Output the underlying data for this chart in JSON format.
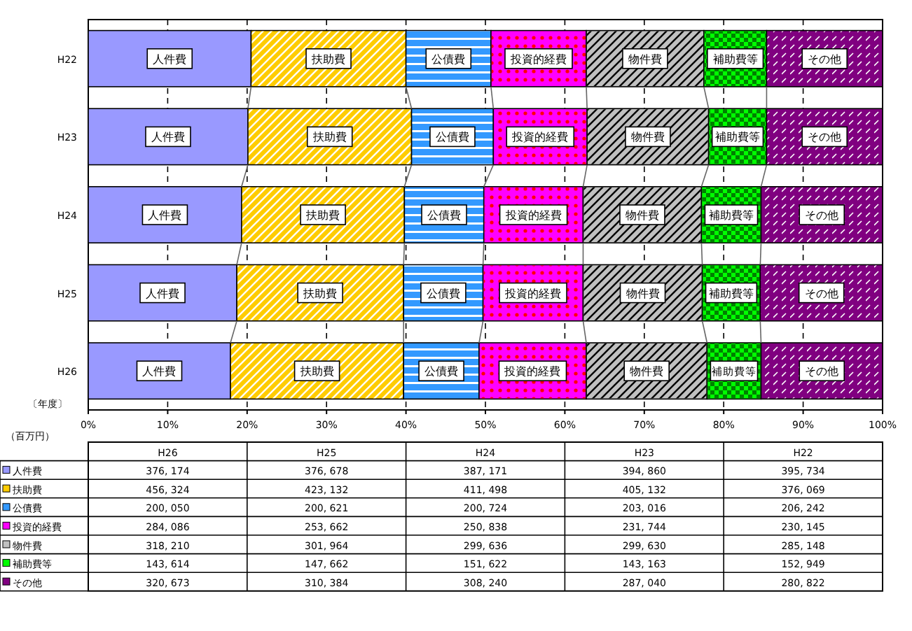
{
  "chart_data": [
    {
      "type": "bar",
      "orientation": "horizontal",
      "stacked": true,
      "categories": [
        "H22",
        "H23",
        "H24",
        "H25",
        "H26"
      ],
      "ylabel": "〔年度〕",
      "xlim": [
        0,
        100
      ],
      "xticks": [
        {
          "value": 0,
          "label": "0%"
        },
        {
          "value": 10,
          "label": "10%"
        },
        {
          "value": 20,
          "label": "20%"
        },
        {
          "value": 30,
          "label": "30%"
        },
        {
          "value": 40,
          "label": "40%"
        },
        {
          "value": 50,
          "label": "50%"
        },
        {
          "value": 60,
          "label": "60%"
        },
        {
          "value": 70,
          "label": "70%"
        },
        {
          "value": 80,
          "label": "80%"
        },
        {
          "value": 90,
          "label": "90%"
        },
        {
          "value": 100,
          "label": "100%"
        }
      ],
      "grid": "x",
      "legend": "bottom left",
      "series": [
        {
          "name": "人件費",
          "color": "#9999ff",
          "values": [
            20.5,
            20.1,
            19.3,
            18.7,
            17.9
          ]
        },
        {
          "name": "扶助費",
          "color": "#ffcc00",
          "values": [
            19.5,
            20.6,
            20.5,
            21.0,
            21.8
          ]
        },
        {
          "name": "公債費",
          "color": "#3399ff",
          "values": [
            10.7,
            10.3,
            10.0,
            10.0,
            9.5
          ]
        },
        {
          "name": "投資的経費",
          "color": "#ff00ff",
          "values": [
            12.0,
            11.8,
            12.5,
            12.6,
            13.5
          ]
        },
        {
          "name": "物件費",
          "color": "#c0c0c0",
          "values": [
            14.8,
            15.3,
            14.9,
            15.0,
            15.2
          ]
        },
        {
          "name": "補助費等",
          "color": "#00ff00",
          "values": [
            7.9,
            7.3,
            7.5,
            7.3,
            6.8
          ]
        },
        {
          "name": "その他",
          "color": "#800080",
          "values": [
            14.6,
            14.6,
            15.3,
            15.4,
            15.3
          ]
        }
      ]
    },
    {
      "type": "other",
      "annotations": [
        "（百万円）",
        "H26",
        "H25",
        "H24",
        "H23",
        "H22",
        "376, 174",
        "376, 678",
        "387, 171",
        "394, 860",
        "395, 734",
        "456, 324",
        "423, 132",
        "411, 498",
        "405, 132",
        "376, 069",
        "200, 050",
        "200, 621",
        "200, 724",
        "203, 016",
        "206, 242",
        "284, 086",
        "253, 662",
        "250, 838",
        "231, 744",
        "230, 145",
        "318, 210",
        "301, 964",
        "299, 636",
        "299, 630",
        "285, 148",
        "143, 614",
        "147, 662",
        "151, 622",
        "143, 163",
        "152, 949",
        "320, 673",
        "310, 384",
        "308, 240",
        "287, 040",
        "280, 822"
      ]
    }
  ]
}
